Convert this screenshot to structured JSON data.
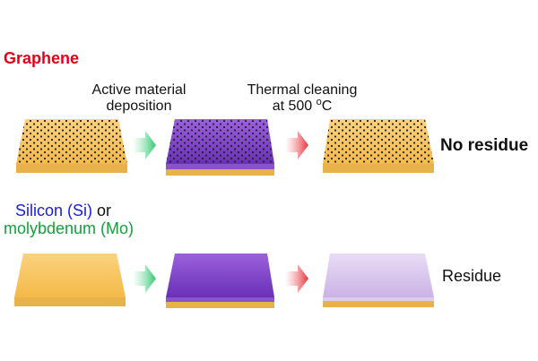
{
  "title": "Graphene",
  "steps": {
    "step1": [
      "Active material",
      "deposition"
    ],
    "step2_line1": "Thermal cleaning",
    "step2_line2_pre": "at 500 ",
    "step2_line2_sup": "o",
    "step2_line2_post": "C"
  },
  "materials": {
    "silicon": "Silicon (Si)",
    "or": " or",
    "molybdenum": "molybdenum (Mo)"
  },
  "results": {
    "graphene": "No residue",
    "si_mo": "Residue"
  },
  "colors": {
    "title_red": "#e2001a",
    "silicon_blue": "#1a1adc",
    "moly_green": "#14a03c",
    "sample_top": "#f9c86a",
    "sample_side": "#e8b24a",
    "purple_top": "#7a3fc4",
    "purple_side": "#5a2a9e",
    "residue_top": "#dcc8ee",
    "arrow_green": "#2fc870",
    "arrow_red": "#e8303a",
    "dots": "#222222"
  },
  "icons": {
    "arrow1": "green-arrow-icon",
    "arrow2": "red-arrow-icon"
  }
}
